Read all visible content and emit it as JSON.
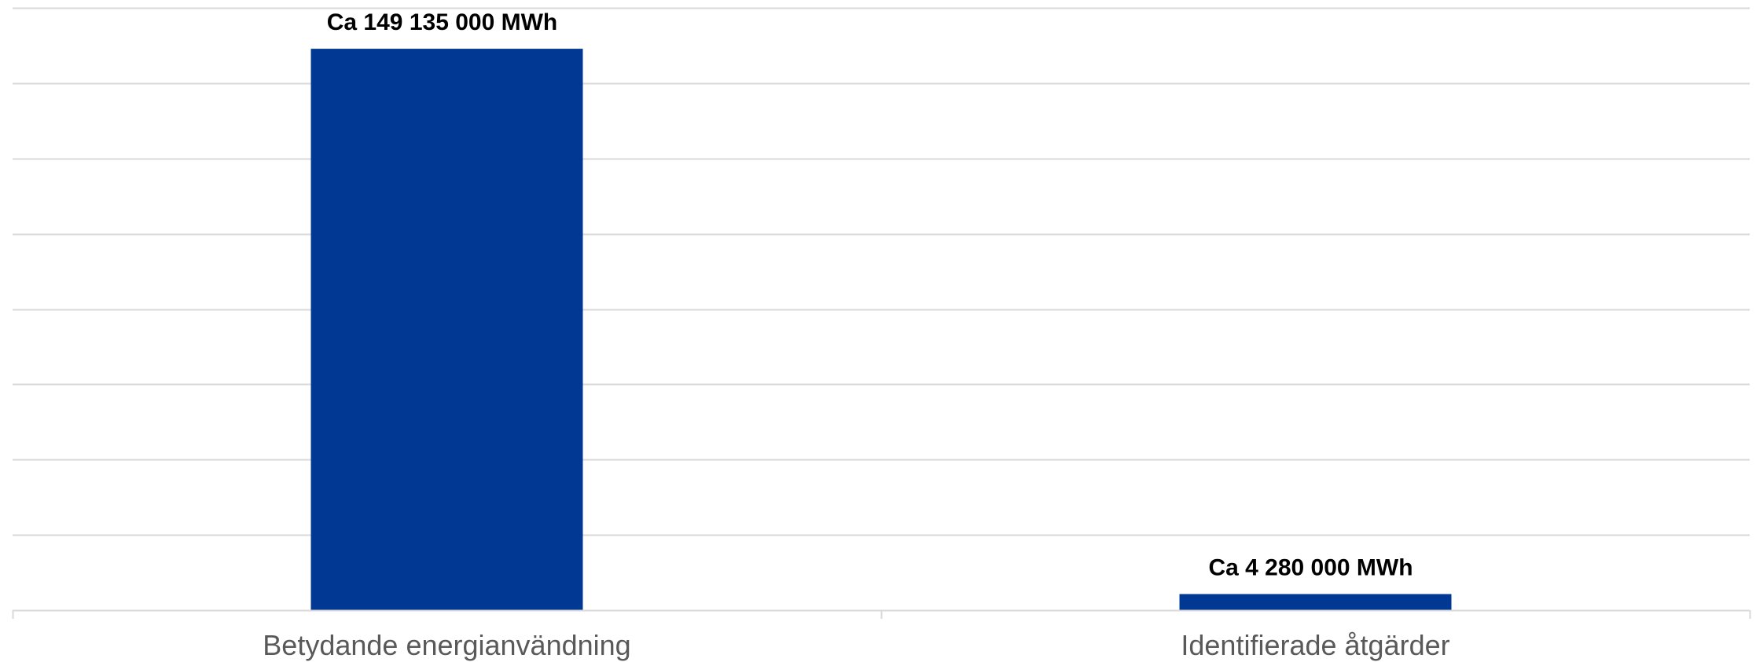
{
  "chart_data": {
    "type": "bar",
    "categories": [
      "Betydande energianvändning",
      "Identifierade åtgärder"
    ],
    "values": [
      149135000,
      4280000
    ],
    "data_labels": [
      "Ca 149 135 000 MWh",
      "Ca 4 280 000 MWh"
    ],
    "ylim": [
      0,
      160000000
    ],
    "grid": true,
    "legend": false,
    "colors": {
      "bar": "#003894",
      "grid": "#d9d9d9",
      "axis": "#d9d9d9",
      "category_text": "#595959",
      "label_text": "#000000"
    }
  }
}
